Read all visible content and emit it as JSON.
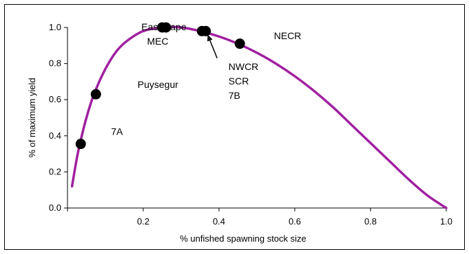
{
  "chart_data": {
    "type": "line",
    "title": "",
    "xlabel": "% unfished spawning stock size",
    "ylabel": "% of maximum yield",
    "xlim": [
      0,
      1.0
    ],
    "ylim": [
      0,
      1.0
    ],
    "x_ticks": [
      "",
      "0.2",
      "0.4",
      "0.6",
      "0.8",
      "1.0"
    ],
    "x_tick_values": [
      0,
      0.2,
      0.4,
      0.6,
      0.8,
      1.0
    ],
    "y_ticks": [
      "0.0",
      "0.2",
      "0.4",
      "0.6",
      "0.8",
      "1.0"
    ],
    "y_tick_values": [
      0,
      0.2,
      0.4,
      0.6,
      0.8,
      1.0
    ],
    "grid": false,
    "curve_color": "#A020A0",
    "point_color": "#000000",
    "series": [
      {
        "type": "line",
        "x": [
          0.012,
          0.02,
          0.03,
          0.05,
          0.07,
          0.1,
          0.13,
          0.16,
          0.2,
          0.25,
          0.3,
          0.35,
          0.4,
          0.45,
          0.5,
          0.55,
          0.6,
          0.65,
          0.7,
          0.75,
          0.8,
          0.85,
          0.9,
          0.95,
          1.0
        ],
        "y": [
          0.12,
          0.22,
          0.33,
          0.5,
          0.63,
          0.77,
          0.87,
          0.93,
          0.98,
          1.0,
          1.0,
          0.98,
          0.95,
          0.91,
          0.86,
          0.8,
          0.73,
          0.65,
          0.56,
          0.46,
          0.36,
          0.26,
          0.16,
          0.07,
          0.0
        ]
      },
      {
        "type": "scatter",
        "x": [
          0.035,
          0.075,
          0.25,
          0.26,
          0.355,
          0.365,
          0.455
        ],
        "y": [
          0.355,
          0.63,
          1.0,
          1.0,
          0.98,
          0.98,
          0.91
        ]
      }
    ],
    "annotations": [
      {
        "text": "East Cape",
        "x": 0.195,
        "y": 0.985
      },
      {
        "text": "MEC",
        "x": 0.21,
        "y": 0.905
      },
      {
        "text": "Puysegur",
        "x": 0.185,
        "y": 0.665
      },
      {
        "text": "7A",
        "x": 0.115,
        "y": 0.405
      },
      {
        "text": "NWCR",
        "x": 0.425,
        "y": 0.765
      },
      {
        "text": "SCR",
        "x": 0.425,
        "y": 0.685
      },
      {
        "text": "7B",
        "x": 0.425,
        "y": 0.605
      },
      {
        "text": "NECR",
        "x": 0.545,
        "y": 0.935
      }
    ],
    "arrow": {
      "from": [
        0.395,
        0.83
      ],
      "to": [
        0.37,
        0.96
      ]
    }
  }
}
